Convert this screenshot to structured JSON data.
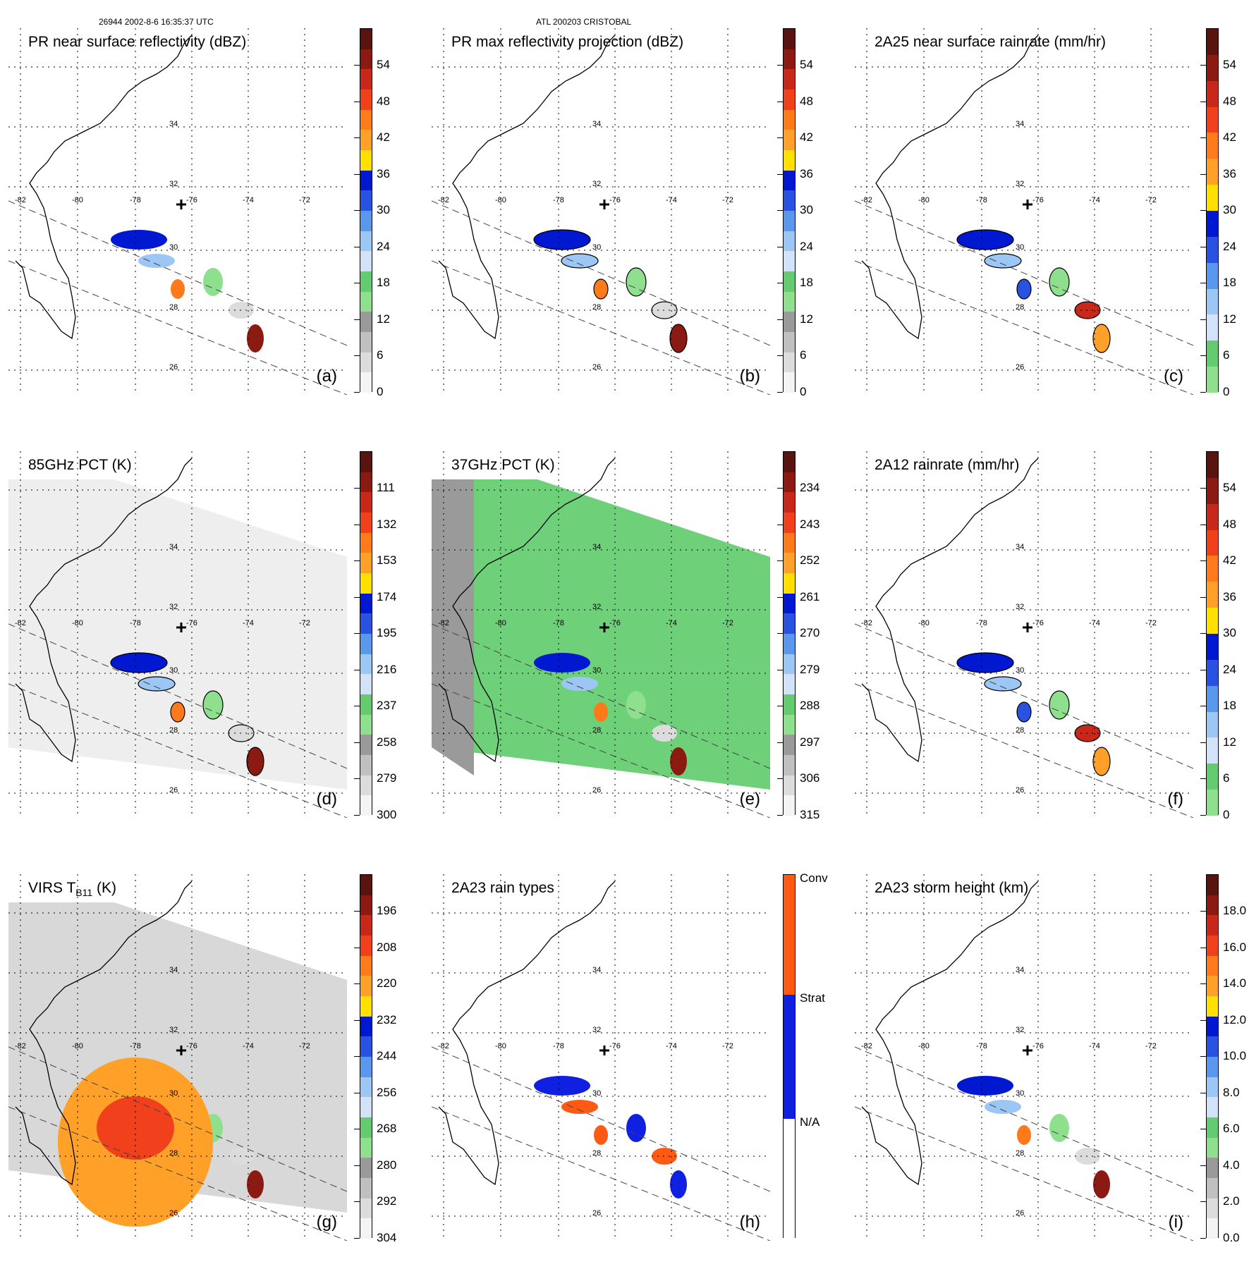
{
  "header": {
    "orbit_time": "26944 2002-8-6 16:35:37 UTC",
    "storm": "ATL 200203 CRISTOBAL"
  },
  "map_labels": {
    "lons": [
      "-82",
      "-80",
      "-78",
      "-76",
      "-74",
      "-72"
    ],
    "lats": [
      "34",
      "32",
      "30",
      "28",
      "26"
    ]
  },
  "panels": [
    {
      "id": "a",
      "title": "PR near surface reflectivity (dBZ)",
      "label": "(a)",
      "colorbar": {
        "type": "dbz",
        "ticks": [
          "54",
          "48",
          "42",
          "36",
          "30",
          "24",
          "18",
          "12",
          "6",
          "0"
        ]
      }
    },
    {
      "id": "b",
      "title": "PR max reflectivity projection (dBZ)",
      "label": "(b)",
      "colorbar": {
        "type": "dbz",
        "ticks": [
          "54",
          "48",
          "42",
          "36",
          "30",
          "24",
          "18",
          "12",
          "6",
          "0"
        ]
      }
    },
    {
      "id": "c",
      "title": "2A25 near surface rainrate (mm/hr)",
      "label": "(c)",
      "colorbar": {
        "type": "rain",
        "ticks": [
          "54",
          "48",
          "42",
          "36",
          "30",
          "24",
          "18",
          "12",
          "6",
          "0"
        ]
      }
    },
    {
      "id": "d",
      "title": "85GHz PCT (K)",
      "label": "(d)",
      "colorbar": {
        "type": "pct",
        "ticks": [
          "111",
          "132",
          "153",
          "174",
          "195",
          "216",
          "237",
          "258",
          "279",
          "300"
        ]
      }
    },
    {
      "id": "e",
      "title": "37GHz PCT (K)",
      "label": "(e)",
      "colorbar": {
        "type": "pct",
        "ticks": [
          "234",
          "243",
          "252",
          "261",
          "270",
          "279",
          "288",
          "297",
          "306",
          "315"
        ]
      }
    },
    {
      "id": "f",
      "title": "2A12 rainrate (mm/hr)",
      "label": "(f)",
      "colorbar": {
        "type": "rain",
        "ticks": [
          "54",
          "48",
          "42",
          "36",
          "30",
          "24",
          "18",
          "12",
          "6",
          "0"
        ]
      }
    },
    {
      "id": "g",
      "title": "VIRS T",
      "title_sub": "B11",
      "title_after": " (K)",
      "label": "(g)",
      "colorbar": {
        "type": "pct",
        "ticks": [
          "196",
          "208",
          "220",
          "232",
          "244",
          "256",
          "268",
          "280",
          "292",
          "304"
        ]
      }
    },
    {
      "id": "h",
      "title": "2A23 rain types",
      "label": "(h)",
      "colorbar": {
        "type": "types",
        "ticks": [
          "Conv",
          "Strat",
          "N/A"
        ]
      }
    },
    {
      "id": "i",
      "title": "2A23 storm height (km)",
      "label": "(i)",
      "colorbar": {
        "type": "height",
        "ticks": [
          "18.0",
          "16.0",
          "14.0",
          "12.0",
          "10.0",
          "8.0",
          "6.0",
          "4.0",
          "2.0",
          "0.0"
        ]
      }
    }
  ]
}
